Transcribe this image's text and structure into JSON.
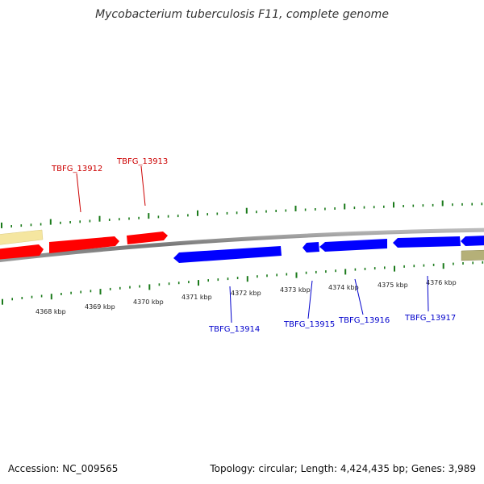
{
  "title": "Mycobacterium tuberculosis F11, complete genome",
  "footer": {
    "accession": "Accession: NC_009565",
    "summary": "Topology: circular; Length: 4,424,435 bp; Genes: 3,989"
  },
  "colors": {
    "forward_gene": "#ff0000",
    "reverse_gene": "#0000ff",
    "forward_label": "#cc0000",
    "reverse_label": "#0000cc",
    "other_feature_top": "#f5e6a0",
    "other_feature_bottom": "#b5b078",
    "backbone": "#888888",
    "tick": "#1a7a1a"
  },
  "scale_labels": [
    "4368 kbp",
    "4369 kbp",
    "4370 kbp",
    "4371 kbp",
    "4372 kbp",
    "4373 kbp",
    "4374 kbp",
    "4375 kbp",
    "4376 kbp"
  ],
  "genes": [
    {
      "label": "TBFG_13912",
      "strand": "forward"
    },
    {
      "label": "TBFG_13913",
      "strand": "forward"
    },
    {
      "label": "TBFG_13914",
      "strand": "reverse"
    },
    {
      "label": "TBFG_13915",
      "strand": "reverse"
    },
    {
      "label": "TBFG_13916",
      "strand": "reverse"
    },
    {
      "label": "TBFG_13917",
      "strand": "reverse"
    }
  ]
}
